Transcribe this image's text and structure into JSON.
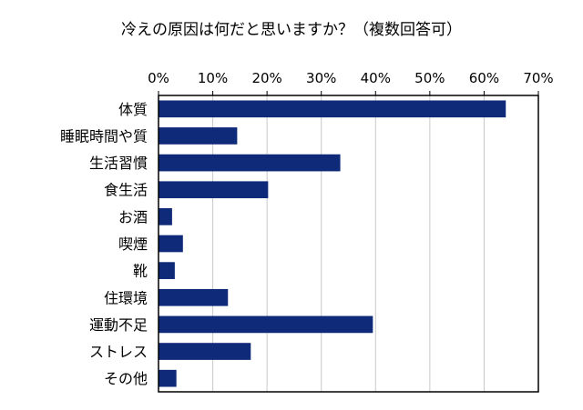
{
  "chart_data": {
    "type": "bar",
    "orientation": "horizontal",
    "title": "冷えの原因は何だと思いますか？（複数回答可）",
    "categories": [
      "体質",
      "睡眠時間や質",
      "生活習慣",
      "食生活",
      "お酒",
      "喫煙",
      "靴",
      "住環境",
      "運動不足",
      "ストレス",
      "その他"
    ],
    "series": [
      {
        "values": [
          64.0,
          14.5,
          33.5,
          20.2,
          2.5,
          4.5,
          3.0,
          12.8,
          39.5,
          17.0,
          3.3
        ]
      }
    ],
    "xlim": [
      0,
      70
    ],
    "x_ticks": [
      0,
      10,
      20,
      30,
      40,
      50,
      60,
      70
    ],
    "tick_suffix": "%",
    "x_axis_position": "top",
    "grid": true,
    "legend": "none",
    "colors": {
      "bar": "#0e2a78",
      "grid": "#c8c8c8",
      "frame": "#000000"
    }
  }
}
